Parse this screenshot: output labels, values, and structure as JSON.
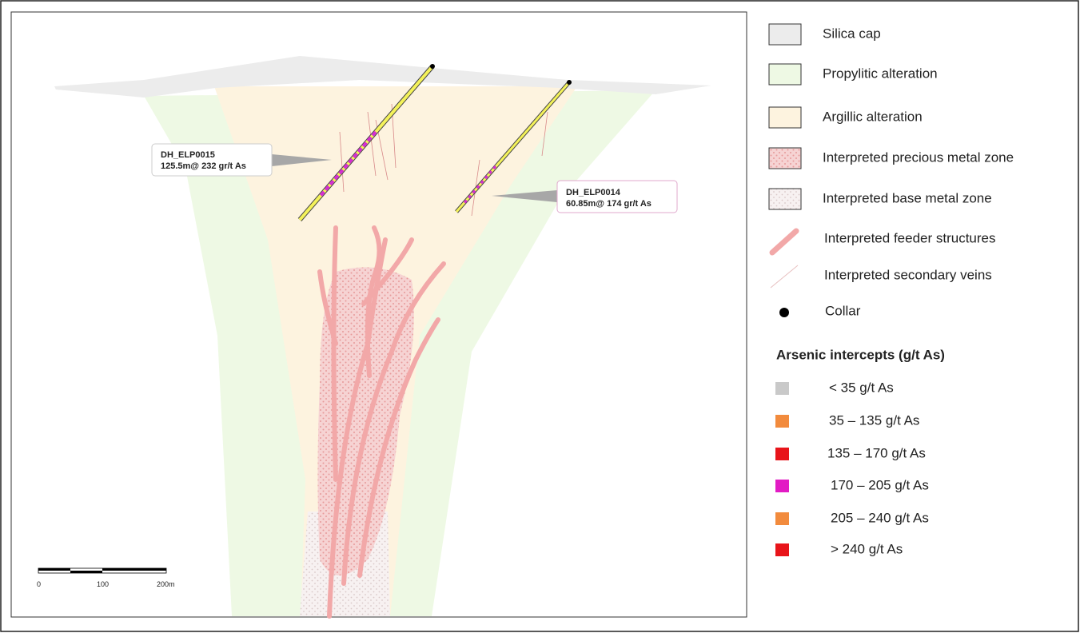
{
  "callouts": [
    {
      "hole": "DH_ELP0015",
      "intercept": "125.5m@ 232 gr/t As"
    },
    {
      "hole": "DH_ELP0014",
      "intercept": "60.85m@ 174 gr/t As"
    }
  ],
  "scale_bar": {
    "labels": [
      "0",
      "100",
      "200m"
    ]
  },
  "legend": {
    "items": [
      "Silica cap",
      "Propylitic alteration",
      "Argillic alteration",
      "Interpreted precious metal zone",
      "Interpreted base metal zone",
      "Interpreted feeder structures",
      "Interpreted secondary veins",
      "Collar"
    ],
    "arsenic_title": "Arsenic intercepts (g/t As)",
    "arsenic_items": [
      "< 35 g/t As",
      "35 – 135 g/t As",
      "135 – 170 g/t As",
      "170 – 205 g/t As",
      "205 – 240 g/t As",
      "> 240 g/t As"
    ]
  }
}
